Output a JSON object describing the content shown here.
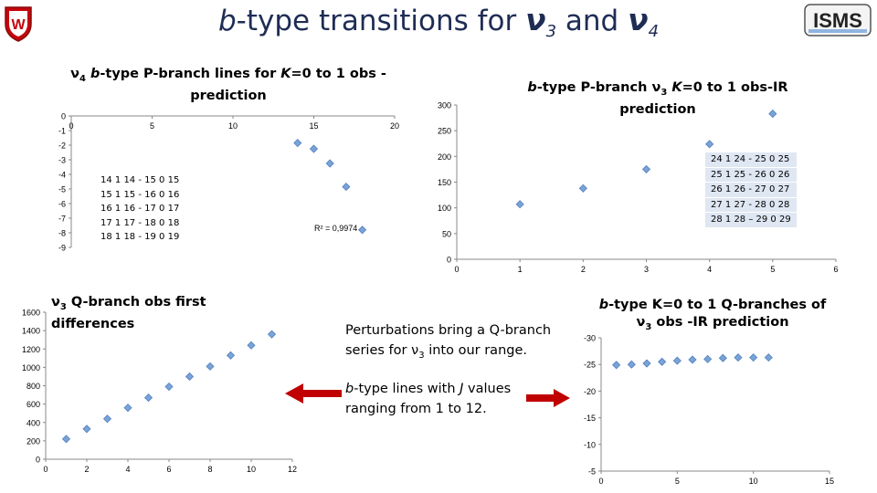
{
  "header": {
    "title_b": "b",
    "title_mid": "-type transitions for ",
    "title_nu": "ν",
    "title_sub3": "3",
    "title_and": " and ",
    "title_sub4": "4",
    "logo_left": "W",
    "logo_right": "ISMS"
  },
  "colors": {
    "marker": "#7aa3d6",
    "marker_edge": "#4f7fbf",
    "arrow": "#c00000",
    "table_bg": "#dfe7f3",
    "title": "#1f2d55"
  },
  "notes": {
    "perturb_line1_a": "Perturbations bring a Q-branch",
    "perturb_line2_a": "series for ",
    "perturb_nu": "ν",
    "perturb_sub": "3",
    "perturb_line2_b": " into our range.",
    "lines_j_a": "-type lines with ",
    "lines_j_b": "b",
    "lines_j_J": "J",
    "lines_j_c": " values",
    "lines_j_line2": "ranging from 1 to 12."
  },
  "chart_data": [
    {
      "id": "v4-p-branch",
      "type": "scatter",
      "title_parts": {
        "nu": "ν",
        "sub": "4",
        "b": "b",
        "a": "-type P-branch lines for ",
        "K": "K",
        "c": "=0 to 1 obs -",
        "line2": "prediction"
      },
      "xlim": [
        0,
        20
      ],
      "ylim": [
        -9,
        0
      ],
      "xticks": [
        0,
        5,
        10,
        15,
        20
      ],
      "xtick_labels": [
        "0",
        "5",
        "10",
        "15",
        "20"
      ],
      "yticks": [
        0,
        -1,
        -2,
        -3,
        -4,
        -5,
        -6,
        -7,
        -8,
        -9
      ],
      "ytick_labels": [
        "0",
        "-1",
        "-2",
        "-3",
        "-4",
        "-5",
        "-6",
        "-7",
        "-8",
        "-9"
      ],
      "x": [
        14,
        15,
        16,
        17,
        18
      ],
      "y": [
        -1.85,
        -2.25,
        -3.25,
        -4.85,
        -7.8
      ],
      "r2_label": "R² = 0,9974",
      "table": [
        "14 1 14 - 15 0 15",
        "15 1 15 - 16 0 16",
        "16 1 16 - 17 0 17",
        "17 1 17 - 18 0 18",
        "18 1 18 - 19 0 19"
      ]
    },
    {
      "id": "v3-p-branch",
      "type": "scatter",
      "title_parts": {
        "b": "b",
        "a": "-type P-branch ",
        "nu": "ν",
        "sub": "3",
        "K": "K",
        "c": "=0 to 1 obs-IR prediction"
      },
      "xlim": [
        0,
        6
      ],
      "ylim": [
        0,
        300
      ],
      "xticks": [
        0,
        1,
        2,
        3,
        4,
        5,
        6
      ],
      "xtick_labels": [
        "0",
        "1",
        "2",
        "3",
        "4",
        "5",
        "6"
      ],
      "yticks": [
        0,
        50,
        100,
        150,
        200,
        250,
        300
      ],
      "ytick_labels": [
        "0",
        "50",
        "100",
        "150",
        "200",
        "250",
        "300"
      ],
      "x": [
        1,
        2,
        3,
        4,
        5
      ],
      "y": [
        107,
        138,
        175,
        224,
        283
      ],
      "table": [
        "24 1 24 - 25 0 25",
        "25 1 25 - 26 0 26",
        "26 1 26 - 27 0 27",
        "27 1 27 - 28 0 28",
        "28 1 28 – 29 0 29"
      ]
    },
    {
      "id": "v3-q-branch-diff",
      "type": "scatter",
      "title_parts": {
        "nu": "ν",
        "sub": "3",
        "a": " Q-branch obs first differences"
      },
      "xlim": [
        0,
        12
      ],
      "ylim": [
        0,
        1600
      ],
      "xticks": [
        0,
        2,
        4,
        6,
        8,
        10,
        12
      ],
      "xtick_labels": [
        "0",
        "2",
        "4",
        "6",
        "8",
        "10",
        "12"
      ],
      "yticks": [
        0,
        200,
        400,
        600,
        800,
        1000,
        1200,
        1400,
        1600
      ],
      "ytick_labels": [
        "0",
        "200",
        "400",
        "600",
        "800",
        "1000",
        "1200",
        "1400",
        "1600"
      ],
      "x": [
        1,
        2,
        3,
        4,
        5,
        6,
        7,
        8,
        9,
        10,
        11
      ],
      "y": [
        220,
        330,
        440,
        560,
        670,
        790,
        900,
        1010,
        1130,
        1240,
        1360
      ]
    },
    {
      "id": "q-branches-k0-1",
      "type": "scatter",
      "title_parts": {
        "b": "b",
        "a": "-type K=0 to 1 Q-branches of",
        "nu": "ν",
        "sub": "3",
        "c": " obs -IR prediction"
      },
      "xlim": [
        0,
        15
      ],
      "ylim": [
        -30,
        -5
      ],
      "xticks": [
        0,
        5,
        10,
        15
      ],
      "xtick_labels": [
        "0",
        "5",
        "10",
        "15"
      ],
      "yticks": [
        -5,
        -10,
        -15,
        -20,
        -25,
        -30
      ],
      "ytick_labels": [
        "-5",
        "-10",
        "-15",
        "-20",
        "-25",
        "-30"
      ],
      "x": [
        1,
        2,
        3,
        4,
        5,
        6,
        7,
        8,
        9,
        10,
        11
      ],
      "y": [
        -24.9,
        -25.0,
        -25.2,
        -25.5,
        -25.7,
        -25.9,
        -26.0,
        -26.2,
        -26.3,
        -26.3,
        -26.3
      ]
    }
  ]
}
